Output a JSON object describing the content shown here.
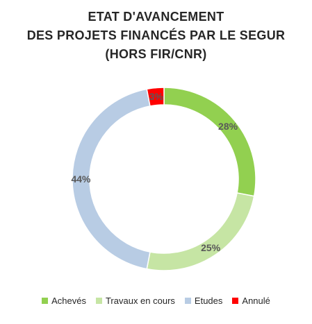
{
  "title": {
    "line1": "ETAT D'AVANCEMENT",
    "line2": "DES PROJETS FINANCÉS PAR LE SEGUR",
    "line3": "(HORS FIR/CNR)"
  },
  "chart_data": {
    "type": "donut",
    "title": "ETAT D'AVANCEMENT DES PROJETS FINANCÉS PAR LE SEGUR (HORS FIR/CNR)",
    "unit": "%",
    "legend_position": "bottom",
    "series": [
      {
        "name": "Achevés",
        "value": 28,
        "label": "28%",
        "color": "#92d050"
      },
      {
        "name": "Travaux en cours",
        "value": 25,
        "label": "25%",
        "color": "#c6e5a4"
      },
      {
        "name": "Etudes",
        "value": 44,
        "label": "44%",
        "color": "#b8cce4"
      },
      {
        "name": "Annulé",
        "value": 3,
        "label": "3%",
        "color": "#ff0000"
      }
    ]
  }
}
